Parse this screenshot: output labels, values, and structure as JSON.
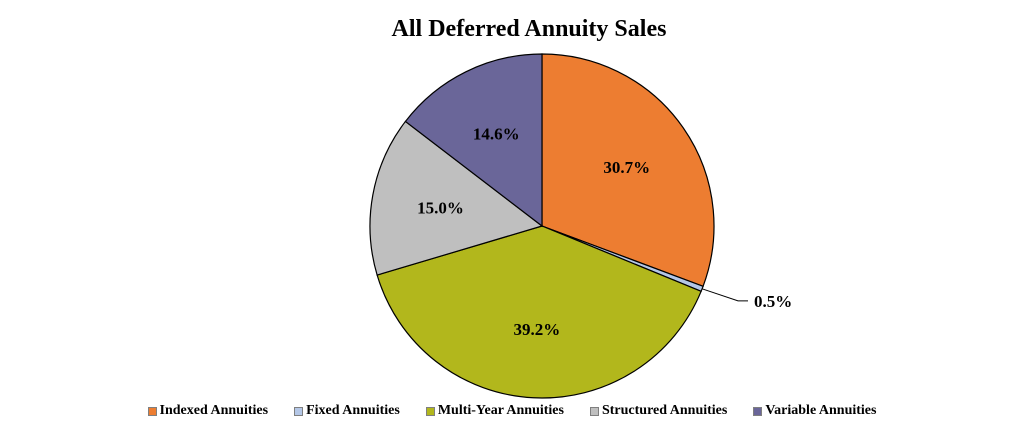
{
  "chart_data": {
    "type": "pie",
    "title": "All Deferred Annuity Sales",
    "categories": [
      "Indexed Annuities",
      "Fixed Annuities",
      "Multi-Year Annuities",
      "Structured Annuities",
      "Variable Annuities"
    ],
    "values": [
      30.7,
      0.5,
      39.2,
      15.0,
      14.6
    ],
    "labels": [
      "30.7%",
      "0.5%",
      "39.2%",
      "15.0%",
      "14.6%"
    ],
    "colors": [
      "#ED7D31",
      "#B4C7E7",
      "#B2B71C",
      "#BFBFBF",
      "#6A6699"
    ],
    "legend_position": "bottom",
    "start_angle": "12 o'clock",
    "direction": "clockwise"
  }
}
